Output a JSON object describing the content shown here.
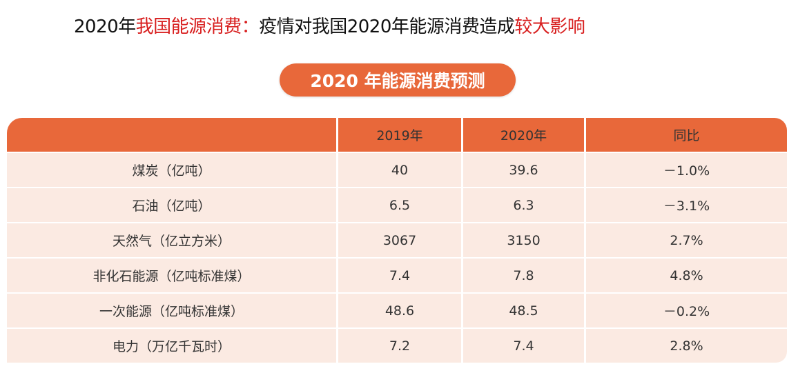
{
  "title": {
    "part1": "2020年",
    "part2_red": "我国能源消费：",
    "part3": "疫情对我国2020年能源消费造成",
    "part4_red": "较大影响"
  },
  "badge": "2020 年能源消费预测",
  "colors": {
    "accent": "#e8683a",
    "row_bg": "#fbeae2",
    "title_red": "#d81e1e"
  },
  "table": {
    "headers": [
      "",
      "2019年",
      "2020年",
      "同比"
    ],
    "rows": [
      [
        "煤炭（亿吨）",
        "40",
        "39.6",
        "－1.0%"
      ],
      [
        "石油（亿吨）",
        "6.5",
        "6.3",
        "－3.1%"
      ],
      [
        "天然气（亿立方米）",
        "3067",
        "3150",
        "2.7%"
      ],
      [
        "非化石能源（亿吨标准煤）",
        "7.4",
        "7.8",
        "4.8%"
      ],
      [
        "一次能源（亿吨标准煤）",
        "48.6",
        "48.5",
        "－0.2%"
      ],
      [
        "电力（万亿千瓦时）",
        "7.2",
        "7.4",
        "2.8%"
      ]
    ]
  }
}
